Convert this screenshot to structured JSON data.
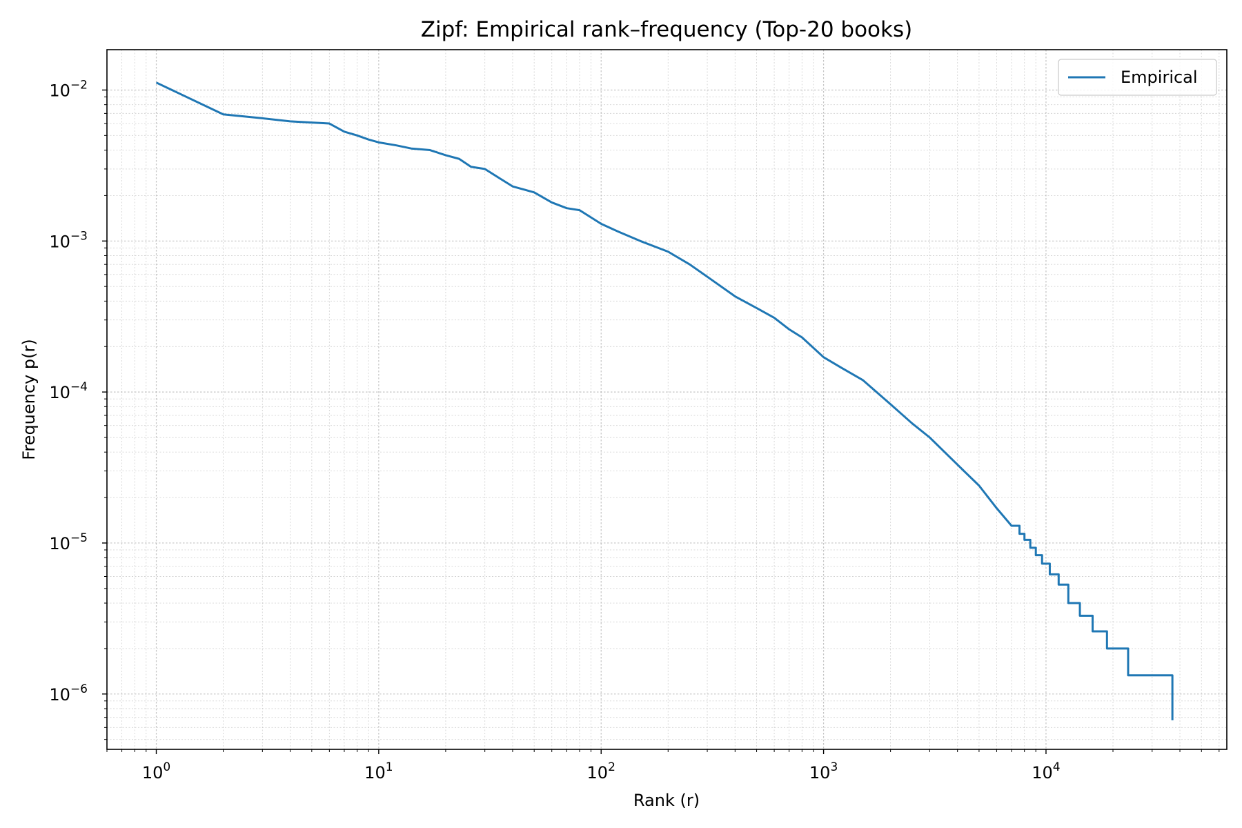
{
  "chart_data": {
    "type": "line",
    "title": "Zipf: Empirical rank–frequency (Top-20 books)",
    "xlabel": "Rank (r)",
    "ylabel": "Frequency p(r)",
    "xscale": "log",
    "yscale": "log",
    "xlim": [
      0.6,
      65000
    ],
    "ylim": [
      4.3e-07,
      0.0185
    ],
    "x_ticks": [
      {
        "value": 1,
        "base": "10",
        "exp": "0"
      },
      {
        "value": 10,
        "base": "10",
        "exp": "1"
      },
      {
        "value": 100,
        "base": "10",
        "exp": "2"
      },
      {
        "value": 1000,
        "base": "10",
        "exp": "3"
      },
      {
        "value": 10000,
        "base": "10",
        "exp": "4"
      }
    ],
    "y_ticks": [
      {
        "value": 0.01,
        "base": "10",
        "exp": "−2"
      },
      {
        "value": 0.001,
        "base": "10",
        "exp": "−3"
      },
      {
        "value": 0.0001,
        "base": "10",
        "exp": "−4"
      },
      {
        "value": 1e-05,
        "base": "10",
        "exp": "−5"
      },
      {
        "value": 1e-06,
        "base": "10",
        "exp": "−6"
      }
    ],
    "grid": true,
    "legend_position": "top-right",
    "series": [
      {
        "name": "Empirical",
        "color": "#1f77b4",
        "step": true,
        "x": [
          1,
          2,
          3,
          4,
          6,
          7,
          8,
          9,
          10,
          12,
          14,
          17,
          20,
          23,
          26,
          30,
          35,
          40,
          50,
          60,
          70,
          80,
          100,
          120,
          150,
          200,
          250,
          300,
          400,
          500,
          600,
          700,
          800,
          1000,
          1200,
          1500,
          2000,
          2500,
          3000,
          4000,
          5000,
          6000,
          7000,
          7600,
          8000,
          8500,
          9000,
          9600,
          10400,
          11400,
          12600,
          14200,
          16200,
          18800,
          23400,
          37000
        ],
        "y": [
          0.0112,
          0.0069,
          0.0065,
          0.0062,
          0.006,
          0.0053,
          0.005,
          0.0047,
          0.0045,
          0.0043,
          0.0041,
          0.004,
          0.0037,
          0.0035,
          0.0031,
          0.003,
          0.0026,
          0.0023,
          0.0021,
          0.0018,
          0.00165,
          0.0016,
          0.0013,
          0.00115,
          0.001,
          0.00085,
          0.0007,
          0.00058,
          0.00043,
          0.00036,
          0.00031,
          0.00026,
          0.00023,
          0.00017,
          0.000145,
          0.00012,
          8.3e-05,
          6.2e-05,
          5e-05,
          3.3e-05,
          2.4e-05,
          1.7e-05,
          1.3e-05,
          1.15e-05,
          1.05e-05,
          9.3e-06,
          8.3e-06,
          7.3e-06,
          6.2e-06,
          5.3e-06,
          4e-06,
          3.3e-06,
          2.6e-06,
          2e-06,
          1.33e-06,
          6.7e-07
        ]
      }
    ]
  }
}
